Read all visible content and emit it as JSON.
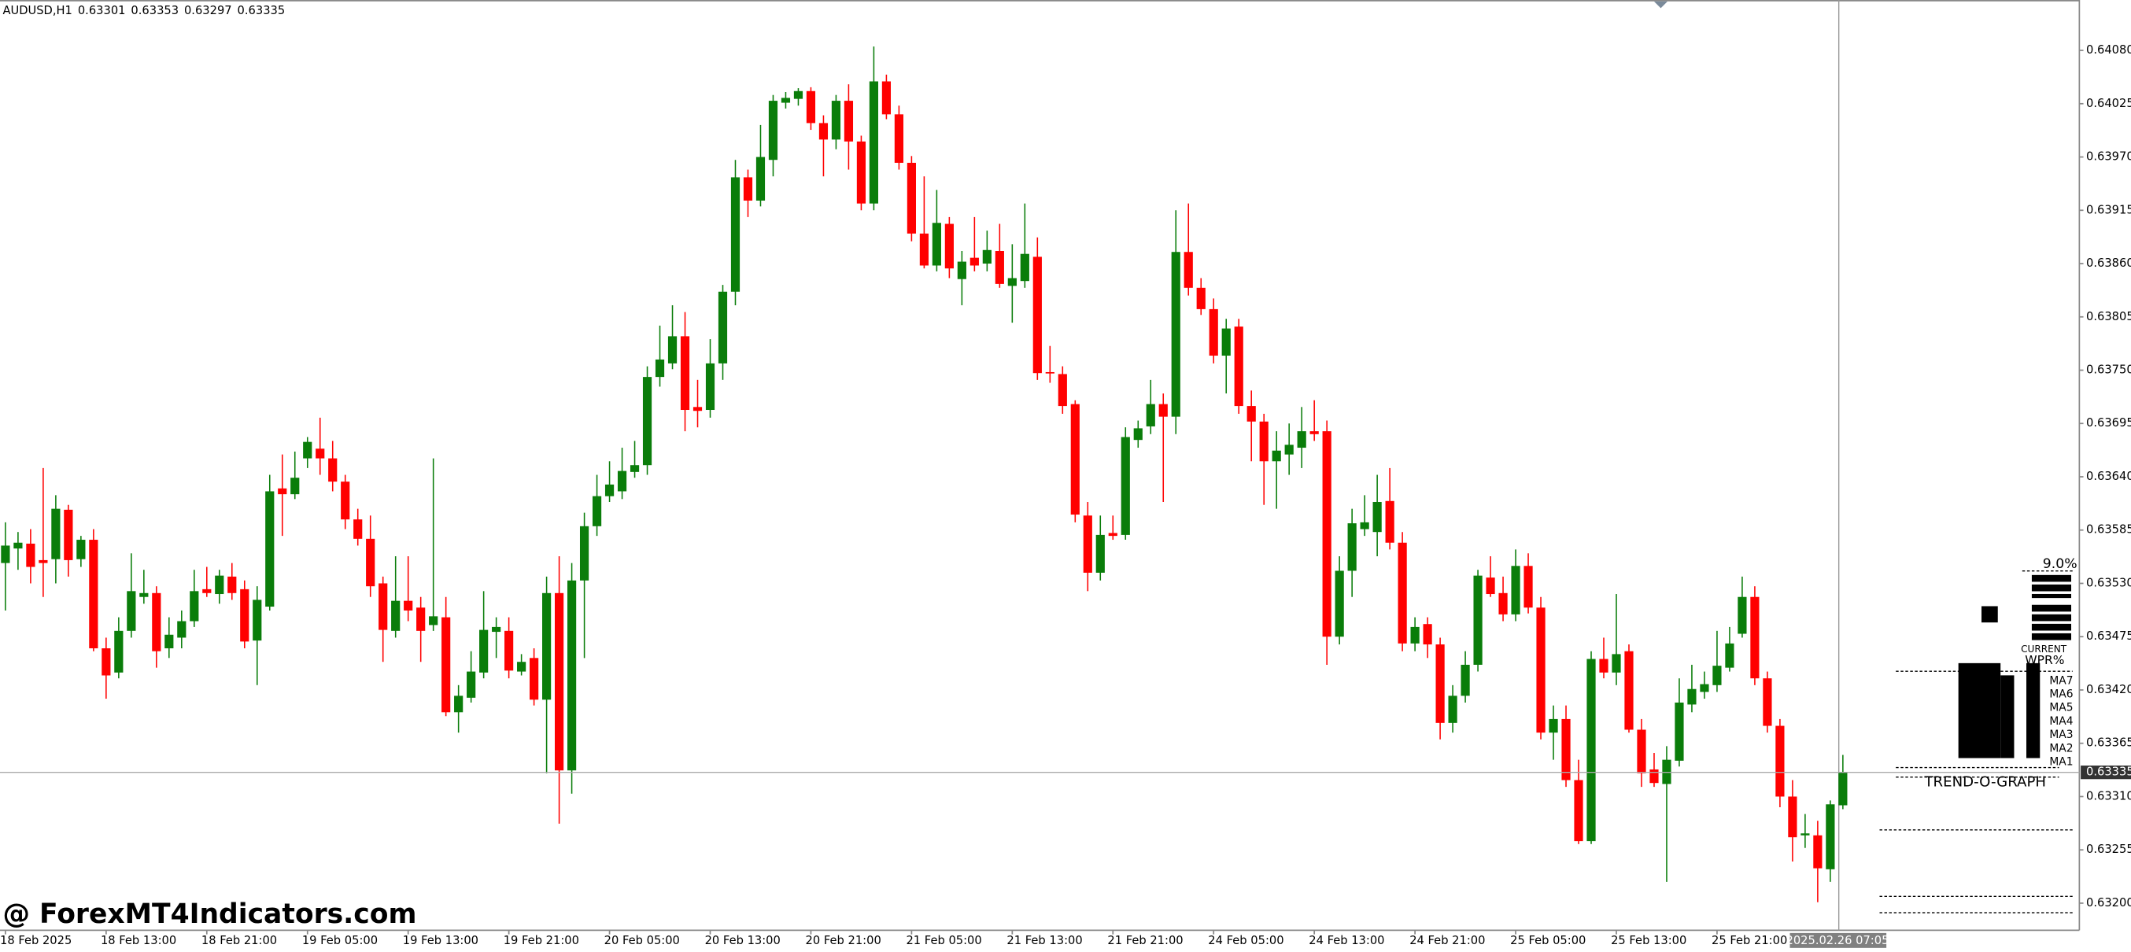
{
  "chart_data": {
    "type": "candlestick",
    "symbol": "AUDUSD,H1",
    "watermark": "@ ForexMT4Indicators.com",
    "cursor_time": "2025.02.26 07:05",
    "up_color": "#0a7d0a",
    "down_color": "#ff0000",
    "categories": [
      "18 Feb 2025",
      null,
      null,
      null,
      null,
      null,
      null,
      null,
      "18 Feb 13:00",
      null,
      null,
      null,
      null,
      null,
      null,
      null,
      "18 Feb 21:00",
      null,
      null,
      null,
      null,
      null,
      null,
      null,
      "19 Feb 05:00",
      null,
      null,
      null,
      null,
      null,
      null,
      null,
      "19 Feb 13:00",
      null,
      null,
      null,
      null,
      null,
      null,
      null,
      "19 Feb 21:00",
      null,
      null,
      null,
      null,
      null,
      null,
      null,
      "20 Feb 05:00",
      null,
      null,
      null,
      null,
      null,
      null,
      null,
      "20 Feb 13:00",
      null,
      null,
      null,
      null,
      null,
      null,
      null,
      "20 Feb 21:00",
      null,
      null,
      null,
      null,
      null,
      null,
      null,
      "21 Feb 05:00",
      null,
      null,
      null,
      null,
      null,
      null,
      null,
      "21 Feb 13:00",
      null,
      null,
      null,
      null,
      null,
      null,
      null,
      "21 Feb 21:00",
      null,
      null,
      null,
      null,
      null,
      null,
      null,
      "24 Feb 05:00",
      null,
      null,
      null,
      null,
      null,
      null,
      null,
      "24 Feb 13:00",
      null,
      null,
      null,
      null,
      null,
      null,
      null,
      "24 Feb 21:00",
      null,
      null,
      null,
      null,
      null,
      null,
      null,
      "25 Feb 05:00",
      null,
      null,
      null,
      null,
      null,
      null,
      null,
      "25 Feb 13:00",
      null,
      null,
      null,
      null,
      null,
      null,
      null,
      "25 Feb 21:00",
      null,
      null,
      null,
      null,
      null,
      null,
      null,
      null,
      null,
      null
    ],
    "open": [
      0.63551,
      0.63566,
      0.63571,
      0.63554,
      0.63555,
      0.63606,
      0.63555,
      0.63575,
      0.63463,
      0.63438,
      0.63481,
      0.63516,
      0.6352,
      0.63463,
      0.63474,
      0.63491,
      0.63524,
      0.63519,
      0.63537,
      0.63524,
      0.63471,
      0.63506,
      0.63628,
      0.63622,
      0.63659,
      0.63669,
      0.63659,
      0.63635,
      0.63596,
      0.63576,
      0.6353,
      0.63481,
      0.63512,
      0.63505,
      0.63487,
      0.63495,
      0.63397,
      0.63412,
      0.63438,
      0.6348,
      0.63481,
      0.63439,
      0.63453,
      0.6341,
      0.6352,
      0.63337,
      0.63533,
      0.63589,
      0.6362,
      0.63625,
      0.63645,
      0.63652,
      0.63743,
      0.63757,
      0.63785,
      0.63712,
      0.63709,
      0.63757,
      0.63831,
      0.63949,
      0.63925,
      0.63967,
      0.64026,
      0.6403,
      0.64038,
      0.64005,
      0.63988,
      0.64028,
      0.63986,
      0.63922,
      0.64048,
      0.64014,
      0.63964,
      0.63891,
      0.63858,
      0.63901,
      0.63844,
      0.63866,
      0.6386,
      0.63873,
      0.63837,
      0.63842,
      0.63867,
      0.63748,
      0.63746,
      0.63715,
      0.636,
      0.63541,
      0.63582,
      0.6358,
      0.63678,
      0.63692,
      0.63715,
      0.63702,
      0.63872,
      0.63835,
      0.63813,
      0.63765,
      0.63795,
      0.63713,
      0.63697,
      0.63656,
      0.63663,
      0.6367,
      0.63687,
      0.63687,
      0.63475,
      0.63543,
      0.63586,
      0.63583,
      0.63615,
      0.63572,
      0.63468,
      0.63488,
      0.63467,
      0.63386,
      0.63414,
      0.63446,
      0.63536,
      0.6352,
      0.63498,
      0.63548,
      0.63505,
      0.63376,
      0.6339,
      0.63327,
      0.63264,
      0.63452,
      0.63438,
      0.6346,
      0.63379,
      0.63338,
      0.63323,
      0.63347,
      0.63405,
      0.63418,
      0.63425,
      0.63443,
      0.63478,
      0.63516,
      0.63432,
      0.63383,
      0.6331,
      0.6327,
      0.6327,
      0.63235,
      0.63301
    ],
    "high": [
      0.63593,
      0.63583,
      0.63586,
      0.63649,
      0.63621,
      0.63611,
      0.63579,
      0.63586,
      0.63474,
      0.63495,
      0.63561,
      0.63544,
      0.63527,
      0.63495,
      0.63502,
      0.63544,
      0.63547,
      0.63544,
      0.63551,
      0.63533,
      0.63527,
      0.63642,
      0.63663,
      0.63666,
      0.63681,
      0.63701,
      0.63677,
      0.63642,
      0.63607,
      0.636,
      0.63537,
      0.63558,
      0.63558,
      0.63516,
      0.63659,
      0.63516,
      0.63425,
      0.6346,
      0.63522,
      0.63495,
      0.63495,
      0.63457,
      0.63463,
      0.63537,
      0.63558,
      0.63551,
      0.63603,
      0.63642,
      0.63656,
      0.6367,
      0.63677,
      0.63754,
      0.63796,
      0.63817,
      0.6381,
      0.6374,
      0.63782,
      0.63838,
      0.63967,
      0.63957,
      0.64003,
      0.64034,
      0.64037,
      0.64041,
      0.64042,
      0.64013,
      0.64034,
      0.64045,
      0.63992,
      0.64084,
      0.64055,
      0.64023,
      0.63971,
      0.6395,
      0.63936,
      0.63908,
      0.63873,
      0.63908,
      0.63894,
      0.63901,
      0.6388,
      0.63922,
      0.63887,
      0.63775,
      0.63754,
      0.63719,
      0.63614,
      0.636,
      0.636,
      0.63691,
      0.63698,
      0.6374,
      0.63726,
      0.63915,
      0.63922,
      0.63845,
      0.63824,
      0.63803,
      0.63803,
      0.63729,
      0.63705,
      0.63687,
      0.63695,
      0.63712,
      0.63719,
      0.63698,
      0.63558,
      0.63607,
      0.63621,
      0.63642,
      0.63649,
      0.63583,
      0.63495,
      0.63495,
      0.63474,
      0.63425,
      0.6346,
      0.63544,
      0.63558,
      0.63537,
      0.63565,
      0.63561,
      0.63516,
      0.63404,
      0.63404,
      0.63348,
      0.6346,
      0.63474,
      0.63519,
      0.63467,
      0.6339,
      0.63355,
      0.63362,
      0.63432,
      0.63446,
      0.63439,
      0.63481,
      0.63485,
      0.63537,
      0.63527,
      0.63439,
      0.6339,
      0.63327,
      0.63292,
      0.63285,
      0.63306,
      0.63353
    ],
    "low": [
      0.63502,
      0.63544,
      0.6353,
      0.63516,
      0.6353,
      0.63537,
      0.63547,
      0.6346,
      0.63411,
      0.63432,
      0.63474,
      0.63509,
      0.63443,
      0.63453,
      0.63463,
      0.63485,
      0.63516,
      0.63509,
      0.63513,
      0.63463,
      0.63425,
      0.63502,
      0.63579,
      0.63617,
      0.63649,
      0.63642,
      0.63625,
      0.63586,
      0.63569,
      0.63516,
      0.63449,
      0.63474,
      0.63491,
      0.63449,
      0.63481,
      0.63393,
      0.63376,
      0.63407,
      0.63432,
      0.63453,
      0.63432,
      0.63435,
      0.63404,
      0.63334,
      0.63282,
      0.63313,
      0.63453,
      0.63579,
      0.63614,
      0.63617,
      0.63639,
      0.63642,
      0.63733,
      0.63751,
      0.63687,
      0.63691,
      0.63701,
      0.6374,
      0.63817,
      0.63908,
      0.63919,
      0.6395,
      0.6402,
      0.64023,
      0.63998,
      0.6395,
      0.63978,
      0.63957,
      0.63915,
      0.63915,
      0.64009,
      0.63957,
      0.63883,
      0.63855,
      0.63852,
      0.63845,
      0.63817,
      0.63852,
      0.63852,
      0.63835,
      0.63799,
      0.63835,
      0.6374,
      0.63737,
      0.63705,
      0.63593,
      0.63522,
      0.63533,
      0.63575,
      0.63575,
      0.6367,
      0.63684,
      0.63614,
      0.63684,
      0.63827,
      0.63807,
      0.63757,
      0.63726,
      0.63705,
      0.63656,
      0.63611,
      0.63607,
      0.63642,
      0.63649,
      0.63677,
      0.63446,
      0.63467,
      0.63516,
      0.63579,
      0.63558,
      0.63565,
      0.6346,
      0.6346,
      0.63453,
      0.63369,
      0.63376,
      0.63407,
      0.63439,
      0.63516,
      0.63491,
      0.63491,
      0.63499,
      0.63369,
      0.63348,
      0.6332,
      0.63261,
      0.63261,
      0.63432,
      0.63425,
      0.63376,
      0.6332,
      0.6332,
      0.63222,
      0.63341,
      0.63397,
      0.63411,
      0.63418,
      0.63439,
      0.63474,
      0.63425,
      0.63376,
      0.63299,
      0.63243,
      0.63257,
      0.63201,
      0.63222,
      0.63297
    ],
    "close": [
      0.63569,
      0.63572,
      0.63547,
      0.63551,
      0.63607,
      0.63554,
      0.63575,
      0.63463,
      0.63435,
      0.63481,
      0.63522,
      0.6352,
      0.6346,
      0.63477,
      0.63491,
      0.63522,
      0.6352,
      0.63538,
      0.6352,
      0.6347,
      0.63513,
      0.63625,
      0.63622,
      0.63639,
      0.63676,
      0.63659,
      0.63635,
      0.63596,
      0.63576,
      0.63527,
      0.63482,
      0.63512,
      0.63502,
      0.63481,
      0.63496,
      0.63397,
      0.63414,
      0.63439,
      0.63482,
      0.63485,
      0.6344,
      0.63449,
      0.6341,
      0.6352,
      0.63337,
      0.63533,
      0.63589,
      0.6362,
      0.63632,
      0.63646,
      0.63652,
      0.63743,
      0.63761,
      0.63785,
      0.63709,
      0.63708,
      0.63757,
      0.63831,
      0.63949,
      0.63925,
      0.6397,
      0.64028,
      0.64031,
      0.64038,
      0.64005,
      0.63988,
      0.64028,
      0.63986,
      0.63922,
      0.64048,
      0.64014,
      0.63964,
      0.63891,
      0.63858,
      0.63902,
      0.63855,
      0.63862,
      0.63858,
      0.63874,
      0.63839,
      0.63845,
      0.6387,
      0.63747,
      0.63747,
      0.63713,
      0.63601,
      0.63541,
      0.6358,
      0.63579,
      0.63681,
      0.6369,
      0.63715,
      0.63702,
      0.63872,
      0.63835,
      0.63813,
      0.63765,
      0.63793,
      0.63713,
      0.63697,
      0.63656,
      0.63667,
      0.63673,
      0.63687,
      0.63684,
      0.63475,
      0.63543,
      0.63592,
      0.63593,
      0.63614,
      0.63572,
      0.63468,
      0.63485,
      0.63467,
      0.63386,
      0.63414,
      0.63446,
      0.63538,
      0.63519,
      0.63498,
      0.63548,
      0.63505,
      0.63376,
      0.6339,
      0.63327,
      0.63264,
      0.63452,
      0.63438,
      0.63457,
      0.63379,
      0.63334,
      0.63324,
      0.63348,
      0.63407,
      0.63421,
      0.63426,
      0.63445,
      0.63468,
      0.63516,
      0.63432,
      0.63383,
      0.6331,
      0.63268,
      0.63272,
      0.63236,
      0.63302,
      0.63335
    ],
    "ylim": [
      0.63172,
      0.64132
    ],
    "yticks": [
      {
        "value": 0.6408,
        "label": "0.64080"
      },
      0.64025,
      {
        "value": 0.6397,
        "label": "0.63970"
      },
      0.63915,
      {
        "value": 0.6386,
        "label": "0.63860"
      },
      0.63805,
      {
        "value": 0.6375,
        "label": "0.63750"
      },
      0.63695,
      {
        "value": 0.6364,
        "label": "0.63640"
      },
      0.63585,
      {
        "value": 0.6353,
        "label": "0.63530"
      },
      0.63475,
      {
        "value": 0.6342,
        "label": "0.63420"
      },
      0.63365,
      {
        "value": 0.6331,
        "label": "0.63310"
      },
      0.63255,
      {
        "value": 0.632,
        "label": "0.63200"
      }
    ],
    "indicator": {
      "title": "TREND-O-GRAPH",
      "wpr_value": "9.0%",
      "wpr_label": "WPR%",
      "current_label": "CURRENT",
      "ma_labels": [
        "MA7",
        "MA6",
        "MA5",
        "MA4",
        "MA3",
        "MA2",
        "MA1"
      ]
    }
  }
}
